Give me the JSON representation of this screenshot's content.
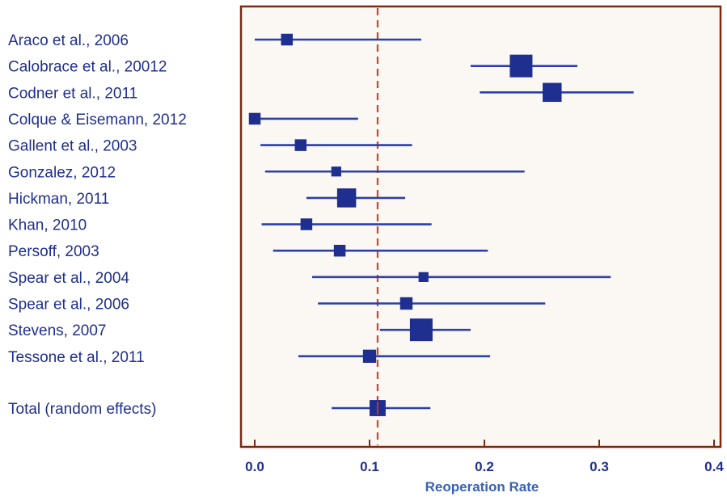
{
  "chart_data": {
    "type": "forest",
    "title": "",
    "xlabel": "Reoperation Rate",
    "ylabel": "",
    "xlim": [
      -0.006,
      0.41
    ],
    "xticks": [
      {
        "value": 0.0,
        "label": "0.0"
      },
      {
        "value": 0.1,
        "label": "0.1"
      },
      {
        "value": 0.2,
        "label": "0.2"
      },
      {
        "value": 0.3,
        "label": "0.3"
      },
      {
        "value": 0.4,
        "label": "0.4"
      }
    ],
    "reference_line": {
      "value": 0.107,
      "style": "dashed",
      "color": "#d2452c"
    },
    "studies": [
      {
        "label": "Araco et al., 2006",
        "estimate": 0.028,
        "ci_low": 0.0,
        "ci_high": 0.145,
        "weight": 2
      },
      {
        "label": "Calobrace et al., 20012",
        "estimate": 0.232,
        "ci_low": 0.188,
        "ci_high": 0.281,
        "weight": 5
      },
      {
        "label": "Codner et al., 2011",
        "estimate": 0.259,
        "ci_low": 0.196,
        "ci_high": 0.33,
        "weight": 4
      },
      {
        "label": "Colque & Eisemann, 2012",
        "estimate": 0.0,
        "ci_low": 0.0,
        "ci_high": 0.09,
        "weight": 2
      },
      {
        "label": "Gallent et al., 2003",
        "estimate": 0.04,
        "ci_low": 0.005,
        "ci_high": 0.137,
        "weight": 2
      },
      {
        "label": "Gonzalez, 2012",
        "estimate": 0.071,
        "ci_low": 0.009,
        "ci_high": 0.235,
        "weight": 1.5
      },
      {
        "label": "Hickman, 2011",
        "estimate": 0.08,
        "ci_low": 0.045,
        "ci_high": 0.131,
        "weight": 4
      },
      {
        "label": "Khan, 2010",
        "estimate": 0.045,
        "ci_low": 0.006,
        "ci_high": 0.154,
        "weight": 2
      },
      {
        "label": "Persoff, 2003",
        "estimate": 0.074,
        "ci_low": 0.016,
        "ci_high": 0.203,
        "weight": 2
      },
      {
        "label": "Spear et al., 2004",
        "estimate": 0.147,
        "ci_low": 0.05,
        "ci_high": 0.31,
        "weight": 1.5
      },
      {
        "label": "Spear et al., 2006",
        "estimate": 0.132,
        "ci_low": 0.055,
        "ci_high": 0.253,
        "weight": 2.2
      },
      {
        "label": "Stevens, 2007",
        "estimate": 0.145,
        "ci_low": 0.109,
        "ci_high": 0.188,
        "weight": 5
      },
      {
        "label": "Tessone et al., 2011",
        "estimate": 0.1,
        "ci_low": 0.038,
        "ci_high": 0.205,
        "weight": 2.4
      }
    ],
    "total": {
      "label": "Total (random effects)",
      "estimate": 0.107,
      "ci_low": 0.067,
      "ci_high": 0.153,
      "weight": 3.2
    },
    "colors": {
      "marker": "#1f2f8f",
      "ci_line": "#2b3fa8",
      "frame": "#7a2a12",
      "plot_background": "#fbf8f4",
      "total_marker_line": "#cc3322"
    }
  }
}
